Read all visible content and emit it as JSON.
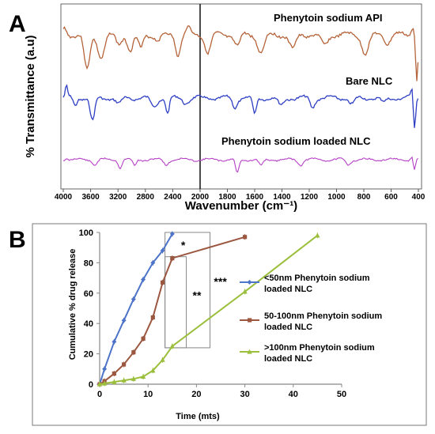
{
  "panelA": {
    "letter": "A",
    "ylabel": "% Transmittance (a.u)",
    "xlabel": "Wavenumber (cm⁻¹)",
    "xticks": [
      "4000",
      "3600",
      "3200",
      "2800",
      "2400",
      "2000",
      "1800",
      "1600",
      "1400",
      "1200",
      "1000",
      "800",
      "600",
      "400"
    ],
    "spectra": [
      {
        "label": "Phenytoin sodium API",
        "color": "#b5643a"
      },
      {
        "label": "Bare NLC",
        "color": "#2e3fc4"
      },
      {
        "label": "Phenytoin sodium loaded NLC",
        "color": "#b540c6"
      }
    ]
  },
  "chart_data": {
    "type": "line",
    "title": "",
    "xlabel": "Time  (mts)",
    "ylabel": "Cumulative % drug release",
    "xlim": [
      0,
      50
    ],
    "ylim": [
      0,
      100
    ],
    "xticks": [
      "0",
      "10",
      "20",
      "30",
      "40",
      "50"
    ],
    "yticks": [
      "0",
      "20",
      "40",
      "60",
      "80",
      "100"
    ],
    "legend_position": "right",
    "series": [
      {
        "name": "<50nm Phenytoin sodium loaded NLC",
        "color": "#4d74c9",
        "x": [
          0,
          1,
          3,
          5,
          7,
          9,
          11,
          13,
          15
        ],
        "y": [
          0,
          10,
          28,
          42,
          56,
          69,
          80,
          88,
          99
        ]
      },
      {
        "name": "50-100nm Phenytoin sodium loaded NLC",
        "color": "#9b573f",
        "x": [
          0,
          1,
          3,
          5,
          7,
          9,
          11,
          13,
          15,
          30
        ],
        "y": [
          0,
          2,
          7,
          13,
          21,
          30,
          44,
          67,
          83,
          97
        ]
      },
      {
        "name": ">100nm Phenytoin sodium loaded NLC",
        "color": "#9bbf3c",
        "x": [
          0,
          1,
          3,
          5,
          7,
          9,
          11,
          13,
          15,
          30,
          45
        ],
        "y": [
          0,
          0.5,
          1.5,
          2.5,
          3.5,
          5,
          9,
          16,
          25,
          61,
          98
        ]
      }
    ],
    "annotations": [
      {
        "text": "*"
      },
      {
        "text": "**"
      },
      {
        "text": "***"
      }
    ]
  },
  "panelB": {
    "letter": "B"
  }
}
